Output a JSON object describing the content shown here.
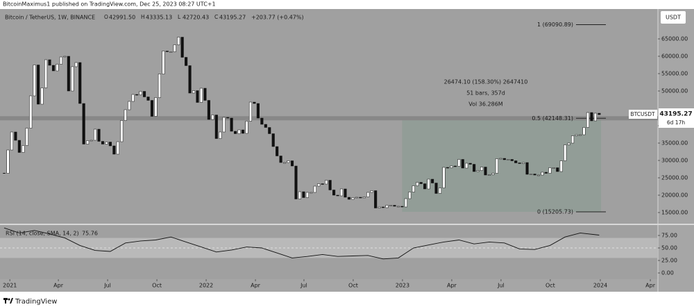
{
  "page": {
    "byline": "BitcoinMaximus1 published on TradingView.com, Dec 25, 2023 08:27 UTC+1",
    "footer": "TradingView",
    "symbol": "Bitcoin / TetherUS, 1W, BINANCE",
    "ohlc": [
      {
        "key": "O",
        "text": "42991.50"
      },
      {
        "key": "H",
        "text": "43335.13"
      },
      {
        "key": "L",
        "text": "42720.43"
      },
      {
        "key": "C",
        "text": "43195.27"
      }
    ],
    "change": "+203.77 (+0.47%)",
    "currency": "USDT",
    "ticker": "BTCUSDT",
    "last_price": "43195.27",
    "countdown": "6d 17h",
    "measure": [
      "26474.10 (158.30%) 2647410",
      "51 bars, 357d",
      "Vol 36.286M"
    ]
  },
  "chart_data": [
    {
      "type": "candlestick",
      "close": [
        26300,
        33000,
        38200,
        35800,
        32300,
        34300,
        39300,
        48600,
        57500,
        46200,
        50900,
        59000,
        57400,
        55800,
        57700,
        59800,
        60000,
        50000,
        57000,
        58200,
        46400,
        34700,
        35700,
        35800,
        39000,
        35500,
        34700,
        35300,
        34200,
        31800,
        35400,
        41500,
        44600,
        47000,
        49000,
        48900,
        49900,
        48300,
        47300,
        42700,
        48100,
        54900,
        61500,
        61300,
        61300,
        63300,
        65500,
        59700,
        57300,
        49400,
        50100,
        46700,
        50800,
        47300,
        41800,
        43100,
        36300,
        38200,
        42400,
        42200,
        38400,
        37700,
        38800,
        37800,
        41300,
        46800,
        46400,
        42200,
        40400,
        39500,
        37700,
        34000,
        31300,
        29400,
        29400,
        29900,
        28400,
        18900,
        21000,
        19300,
        20800,
        20800,
        22600,
        23300,
        23200,
        24300,
        21500,
        20000,
        19800,
        21800,
        19400,
        18800,
        19300,
        19400,
        19200,
        19500,
        20800,
        21300,
        16300,
        16600,
        16400,
        17100,
        17100,
        16800,
        16800,
        16600,
        19000,
        20900,
        22700,
        23700,
        23300,
        21800,
        24600,
        23500,
        20500,
        22100,
        28000,
        27900,
        28400,
        28300,
        30300,
        27800,
        29200,
        28900,
        26800,
        27100,
        28100,
        25800,
        25900,
        26300,
        30500,
        30600,
        30200,
        30300,
        29900,
        29300,
        29100,
        29400,
        26000,
        26100,
        25800,
        25800,
        26600,
        26300,
        27900,
        27900,
        26800,
        29900,
        34500,
        35000,
        37100,
        37400,
        37400,
        39500,
        43800,
        41400,
        43600,
        43195.27
      ],
      "up_color": "#ffffff",
      "down_color": "#111111",
      "xlim": [
        -1.1,
        172.5
      ],
      "xticks": [
        {
          "value": 1.5,
          "label": "2021"
        },
        {
          "value": 14.3,
          "label": "Apr"
        },
        {
          "value": 27.3,
          "label": "Jul"
        },
        {
          "value": 40.3,
          "label": "Oct"
        },
        {
          "value": 53.3,
          "label": "2022"
        },
        {
          "value": 66.3,
          "label": "Apr"
        },
        {
          "value": 79.1,
          "label": "Jul"
        },
        {
          "value": 92.1,
          "label": "Oct"
        },
        {
          "value": 105.1,
          "label": "2023"
        },
        {
          "value": 118.1,
          "label": "Apr"
        },
        {
          "value": 131.1,
          "label": "Jul"
        },
        {
          "value": 144.1,
          "label": "Oct"
        },
        {
          "value": 157.3,
          "label": "2024"
        },
        {
          "value": 170.5,
          "label": "Apr"
        }
      ],
      "ylim": [
        11800,
        73600
      ],
      "yticks": [
        {
          "value": 15000,
          "label": "15000.00"
        },
        {
          "value": 20000,
          "label": "20000.00"
        },
        {
          "value": 25000,
          "label": "25000.00"
        },
        {
          "value": 30000,
          "label": "30000.00"
        },
        {
          "value": 35000,
          "label": "35000.00"
        },
        {
          "value": 40000,
          "label": "40000.00"
        },
        {
          "value": 50000,
          "label": "50000.00"
        },
        {
          "value": 55000,
          "label": "55000.00"
        },
        {
          "value": 60000,
          "label": "60000.00"
        },
        {
          "value": 65000,
          "label": "65000.00"
        }
      ],
      "fib": [
        {
          "label": "1 (69090.89)",
          "value": 69090.89
        },
        {
          "label": "0.5 (42148.31)",
          "value": 42148.31
        },
        {
          "label": "0 (15205.73)",
          "value": 15205.73
        }
      ]
    },
    {
      "type": "line",
      "title": "RSI (14, close, SMA, 14, 2)",
      "last_label": "75.76",
      "x": [
        0,
        4,
        8,
        12,
        16,
        20,
        24,
        28,
        32,
        36,
        40,
        44,
        48,
        52,
        56,
        60,
        64,
        68,
        72,
        76,
        80,
        84,
        88,
        92,
        96,
        100,
        104,
        108,
        112,
        116,
        120,
        124,
        128,
        132,
        136,
        140,
        144,
        148,
        152,
        157
      ],
      "values": [
        90,
        80,
        85,
        78,
        70,
        55,
        45,
        43,
        60,
        64,
        66,
        72,
        62,
        52,
        42,
        46,
        52,
        50,
        40,
        30,
        33,
        37,
        33,
        34,
        35,
        28,
        30,
        50,
        56,
        62,
        66,
        58,
        62,
        60,
        48,
        47,
        55,
        72,
        80,
        75.76
      ],
      "color": "#111111",
      "ylim": [
        0,
        100
      ],
      "yticks": [
        {
          "value": 0,
          "label": "0.00"
        },
        {
          "value": 25,
          "label": "25.00"
        },
        {
          "value": 50,
          "label": "50.00"
        },
        {
          "value": 75,
          "label": "75.00"
        }
      ],
      "band": [
        30,
        70
      ]
    }
  ]
}
